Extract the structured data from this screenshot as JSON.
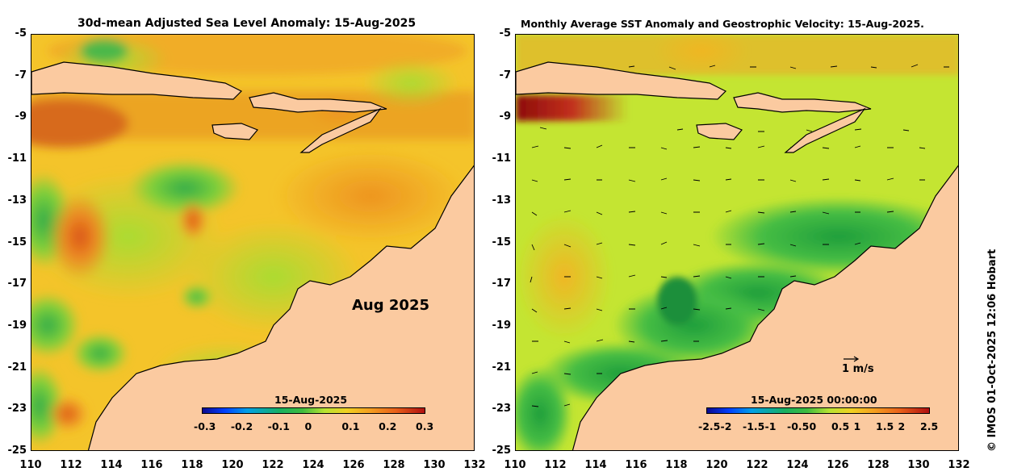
{
  "left_panel": {
    "title": "30d-mean Adjusted Sea Level Anomaly: 15-Aug-2025",
    "month_label": "Aug 2025",
    "colorbar_title": "15-Aug-2025",
    "colorbar_ticks": [
      "-0.3",
      "-0.2",
      "-0.1",
      "0",
      "0.1",
      "0.2",
      "0.3"
    ],
    "colorbar_range": [
      -0.3,
      0.3
    ]
  },
  "right_panel": {
    "title": "Monthly Average SST Anomaly  and Geostrophic Velocity: 15-Aug-2025.",
    "reference_vector_label": "1 m/s",
    "colorbar_title": "15-Aug-2025 00:00:00",
    "colorbar_ticks": [
      "-2.5",
      "-2",
      "-1.5",
      "-1",
      "-0.5",
      "0",
      "0.5",
      "1",
      "1.5",
      "2",
      "2.5"
    ],
    "colorbar_range": [
      -2.5,
      2.5
    ]
  },
  "axes": {
    "lat_ticks": [
      "-5",
      "-7",
      "-9",
      "-11",
      "-13",
      "-15",
      "-17",
      "-19",
      "-21",
      "-23",
      "-25"
    ],
    "lon_ticks": [
      "110",
      "112",
      "114",
      "116",
      "118",
      "120",
      "122",
      "124",
      "126",
      "128",
      "130",
      "132"
    ],
    "lon_range": [
      110,
      132
    ],
    "lat_range": [
      -25,
      -5
    ]
  },
  "credit": "© IMOS 01-Oct-2025 12:06 Hobart",
  "colors": {
    "land": "#fbcaa0",
    "sla_background": "#f6c228",
    "sst_background": "#c2e733",
    "warm_anomaly": "#e3771c",
    "cool_anomaly": "#33b246"
  }
}
